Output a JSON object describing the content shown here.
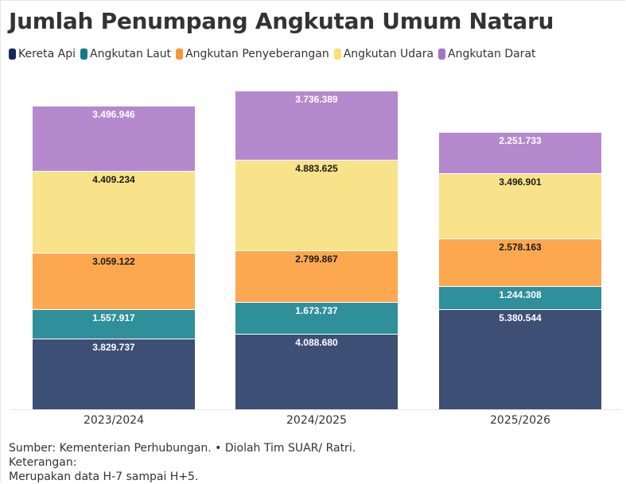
{
  "title": "Jumlah Penumpang Angkutan Umum Nataru",
  "legend": [
    {
      "label": "Kereta Api",
      "color": "#15295a"
    },
    {
      "label": "Angkutan Laut",
      "color": "#117a85"
    },
    {
      "label": "Angkutan Penyeberangan",
      "color": "#fb9736"
    },
    {
      "label": "Angkutan Udara",
      "color": "#f9df74"
    },
    {
      "label": "Angkutan Darat",
      "color": "#a873c6"
    }
  ],
  "chart_data": {
    "type": "bar",
    "stacked": true,
    "title": "Jumlah Penumpang Angkutan Umum Nataru",
    "xlabel": "",
    "ylabel": "",
    "categories": [
      "2023/2024",
      "2024/2025",
      "2025/2026"
    ],
    "series": [
      {
        "name": "Kereta Api",
        "color": "#3d4f75",
        "values": [
          3829737,
          4088680,
          5380544
        ],
        "labels": [
          "3.829.737",
          "4.088.680",
          "5.380.544"
        ]
      },
      {
        "name": "Angkutan Laut",
        "color": "#2f8f9a",
        "values": [
          1557917,
          1673737,
          1244308
        ],
        "labels": [
          "1.557.917",
          "1.673.737",
          "1.244.308"
        ]
      },
      {
        "name": "Angkutan Penyeberangan",
        "color": "#fca850",
        "values": [
          3059122,
          2799867,
          2578163
        ],
        "labels": [
          "3.059.122",
          "2.799.867",
          "2.578.163"
        ]
      },
      {
        "name": "Angkutan Udara",
        "color": "#f8e28a",
        "values": [
          4409234,
          4883625,
          3496901
        ],
        "labels": [
          "4.409.234",
          "4.883.625",
          "3.496.901"
        ]
      },
      {
        "name": "Angkutan Darat",
        "color": "#b589cd",
        "values": [
          3496946,
          3736389,
          2251733
        ],
        "labels": [
          "3.496.946",
          "3.736.389",
          "2.251.733"
        ]
      }
    ],
    "ylim": [
      0,
      18200000
    ],
    "grid": false,
    "legend_position": "top"
  },
  "notes": {
    "source": "Sumber: Kementerian Perhubungan. • Diolah Tim SUAR/ Ratri.",
    "keterangan": "Keterangan:",
    "description": "Merupakan data H-7 sampai H+5."
  }
}
